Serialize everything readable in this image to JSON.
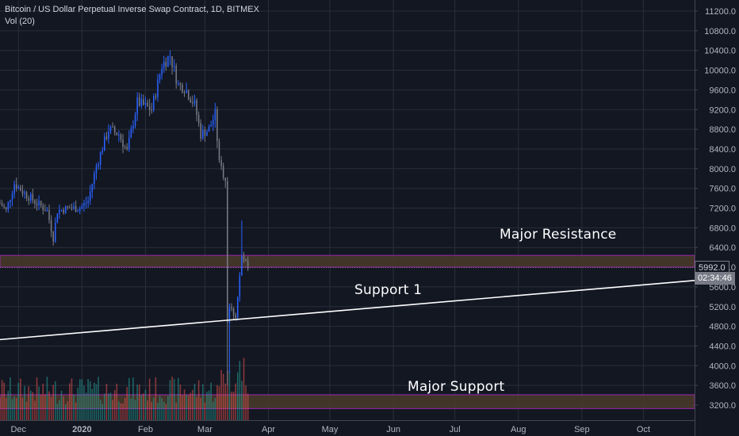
{
  "header": {
    "title": "Bitcoin / US Dollar Perpetual Inverse Swap Contract, 1D, BITMEX",
    "volume_label": "Vol (20)"
  },
  "annotations": {
    "major_resistance": "Major Resistance",
    "support_1": "Support 1",
    "major_support": "Major Support"
  },
  "price_tags": {
    "last_price": "5992.0",
    "countdown": "02:34:46"
  },
  "colors": {
    "background": "#131722",
    "grid": "#2a2e39",
    "candle_up": "#2962ff",
    "candle_down": "#787b86",
    "volume_up": "#26a69a",
    "volume_down": "#ef5350",
    "zone_fill": "#4a3a2a",
    "zone_border": "#9c27b0",
    "trendline": "#ffffff",
    "axis_text": "#b2b5be"
  },
  "chart_data": {
    "type": "candlestick",
    "title": "Bitcoin / US Dollar Perpetual Inverse Swap Contract, 1D, BITMEX",
    "y_axis": {
      "ticks": [
        3200,
        3600,
        4000,
        4400,
        4800,
        5200,
        5600,
        6000,
        6400,
        6800,
        7200,
        7600,
        8000,
        8400,
        8800,
        9200,
        9600,
        10000,
        10400,
        10800,
        11200
      ],
      "tick_labels": [
        "3200.0",
        "3600.0",
        "4000.0",
        "4400.0",
        "4800.0",
        "5200.0",
        "5600.0",
        "6000.0",
        "6400.0",
        "6800.0",
        "7200.0",
        "7600.0",
        "8000.0",
        "8400.0",
        "8800.0",
        "9200.0",
        "9600.0",
        "10000.0",
        "10400.0",
        "10800.0",
        "11200.0"
      ],
      "ylim": [
        3050,
        11400
      ]
    },
    "x_axis": {
      "tick_labels": [
        "Dec",
        "2020",
        "Feb",
        "Mar",
        "Apr",
        "May",
        "Jun",
        "Jul",
        "Aug",
        "Sep",
        "Oct"
      ],
      "tick_dates": [
        "2019-12-01",
        "2020-01-01",
        "2020-02-01",
        "2020-03-01",
        "2020-04-01",
        "2020-05-01",
        "2020-06-01",
        "2020-07-01",
        "2020-08-01",
        "2020-09-01",
        "2020-10-01"
      ],
      "range": [
        "2019-11-22",
        "2020-10-26"
      ]
    },
    "close_path": [
      {
        "date": "2019-11-22",
        "close": 7300
      },
      {
        "date": "2019-11-25",
        "close": 7150
      },
      {
        "date": "2019-11-29",
        "close": 7700
      },
      {
        "date": "2019-12-04",
        "close": 7500
      },
      {
        "date": "2019-12-10",
        "close": 7300
      },
      {
        "date": "2019-12-15",
        "close": 7150
      },
      {
        "date": "2019-12-18",
        "close": 6600
      },
      {
        "date": "2019-12-20",
        "close": 7150
      },
      {
        "date": "2019-12-26",
        "close": 7200
      },
      {
        "date": "2019-12-31",
        "close": 7200
      },
      {
        "date": "2020-01-04",
        "close": 7350
      },
      {
        "date": "2020-01-08",
        "close": 8050
      },
      {
        "date": "2020-01-14",
        "close": 8800
      },
      {
        "date": "2020-01-19",
        "close": 8700
      },
      {
        "date": "2020-01-23",
        "close": 8350
      },
      {
        "date": "2020-01-28",
        "close": 9350
      },
      {
        "date": "2020-02-04",
        "close": 9200
      },
      {
        "date": "2020-02-09",
        "close": 10100
      },
      {
        "date": "2020-02-13",
        "close": 10300
      },
      {
        "date": "2020-02-17",
        "close": 9700
      },
      {
        "date": "2020-02-20",
        "close": 9650
      },
      {
        "date": "2020-02-25",
        "close": 9300
      },
      {
        "date": "2020-02-28",
        "close": 8700
      },
      {
        "date": "2020-03-03",
        "close": 8800
      },
      {
        "date": "2020-03-06",
        "close": 9100
      },
      {
        "date": "2020-03-08",
        "close": 8100
      },
      {
        "date": "2020-03-11",
        "close": 7800
      },
      {
        "date": "2020-03-12",
        "close": 4900
      },
      {
        "date": "2020-03-13",
        "close": 5200
      },
      {
        "date": "2020-03-16",
        "close": 5000
      },
      {
        "date": "2020-03-19",
        "close": 6200
      },
      {
        "date": "2020-03-20",
        "close": 6150
      },
      {
        "date": "2020-03-22",
        "close": 5992
      }
    ],
    "zones": [
      {
        "label": "Major Resistance",
        "from": 6000,
        "to": 6240
      },
      {
        "label": "Major Support",
        "from": 3130,
        "to": 3410
      }
    ],
    "trendline": {
      "label": "Support 1",
      "points": [
        {
          "date": "2019-11-22",
          "value": 4530
        },
        {
          "date": "2020-10-26",
          "value": 5730
        }
      ]
    },
    "last_price": 5992.0,
    "grid": true
  }
}
